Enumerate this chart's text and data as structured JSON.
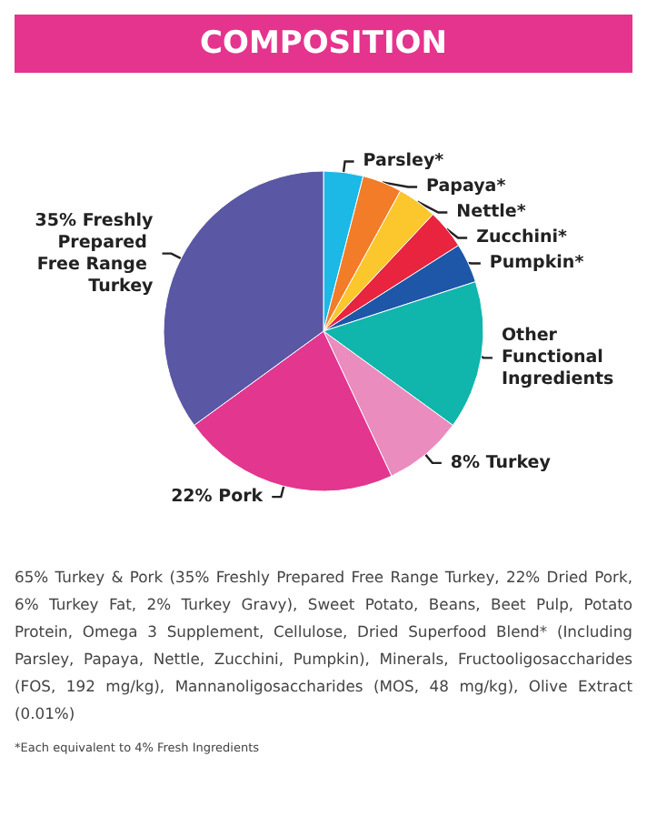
{
  "chart_data": {
    "type": "pie",
    "title": "COMPOSITION",
    "categories": [
      "Parsley*",
      "Papaya*",
      "Nettle*",
      "Zucchini*",
      "Pumpkin*",
      "Other Functional Ingredients",
      "8% Turkey",
      "22% Pork",
      "35% Freshly Prepared Free Range Turkey"
    ],
    "values": [
      4,
      4,
      4,
      4,
      4,
      15,
      8,
      22,
      35
    ],
    "colors": [
      "#1cb8e6",
      "#f27c27",
      "#fcc62d",
      "#e8243f",
      "#1e56a8",
      "#10b5ab",
      "#ea8cbd",
      "#e2368f",
      "#5a57a4"
    ],
    "legend": false,
    "annotations": [
      "65% Turkey & Pork (35% Freshly Prepared Free Range Turkey, 22% Dried Pork, 6% Turkey Fat, 2% Turkey Gravy), Sweet Potato, Beans, Beet Pulp, Potato Protein, Omega 3 Supplement, Cellulose, Dried Superfood Blend* (Including Parsley, Papaya, Nettle, Zucchini, Pumpkin), Minerals, Fructooligosaccharides (FOS, 192 mg/kg), Mannanoligosaccharides (MOS, 48 mg/kg), Olive Extract (0.01%)",
      "*Each equivalent to 4% Fresh Ingredients"
    ]
  }
}
